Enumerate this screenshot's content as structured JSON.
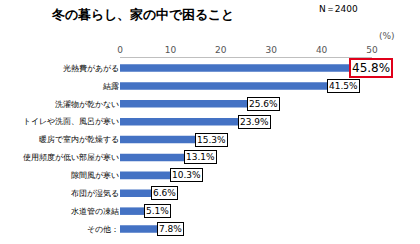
{
  "chart_data": {
    "type": "bar",
    "orientation": "horizontal",
    "title": "冬の暮らし、家の中で困ること",
    "subtitle": "N＝2400",
    "x_label": "(%)",
    "categories": [
      "光熱費があがる",
      "結露",
      "洗濯物が乾かない",
      "トイレや洗面、風呂が寒い",
      "暖房で室内が乾燥する",
      "使用頻度が低い部屋が寒い",
      "隙間風が寒い",
      "布団が湿気る",
      "水道管の凍結",
      "その他："
    ],
    "values": [
      45.8,
      41.5,
      25.6,
      23.9,
      15.3,
      13.1,
      10.3,
      6.6,
      5.1,
      7.8
    ],
    "value_labels": [
      "45.8%",
      "41.5%",
      "25.6%",
      "23.9%",
      "15.3%",
      "13.1%",
      "10.3%",
      "6.6%",
      "5.1%",
      "7.8%"
    ],
    "data_labels": true,
    "color": "#4472c4",
    "xlim": [
      0,
      50
    ],
    "xticks": [
      0,
      10,
      20,
      30,
      40,
      50
    ],
    "grid": false
  }
}
